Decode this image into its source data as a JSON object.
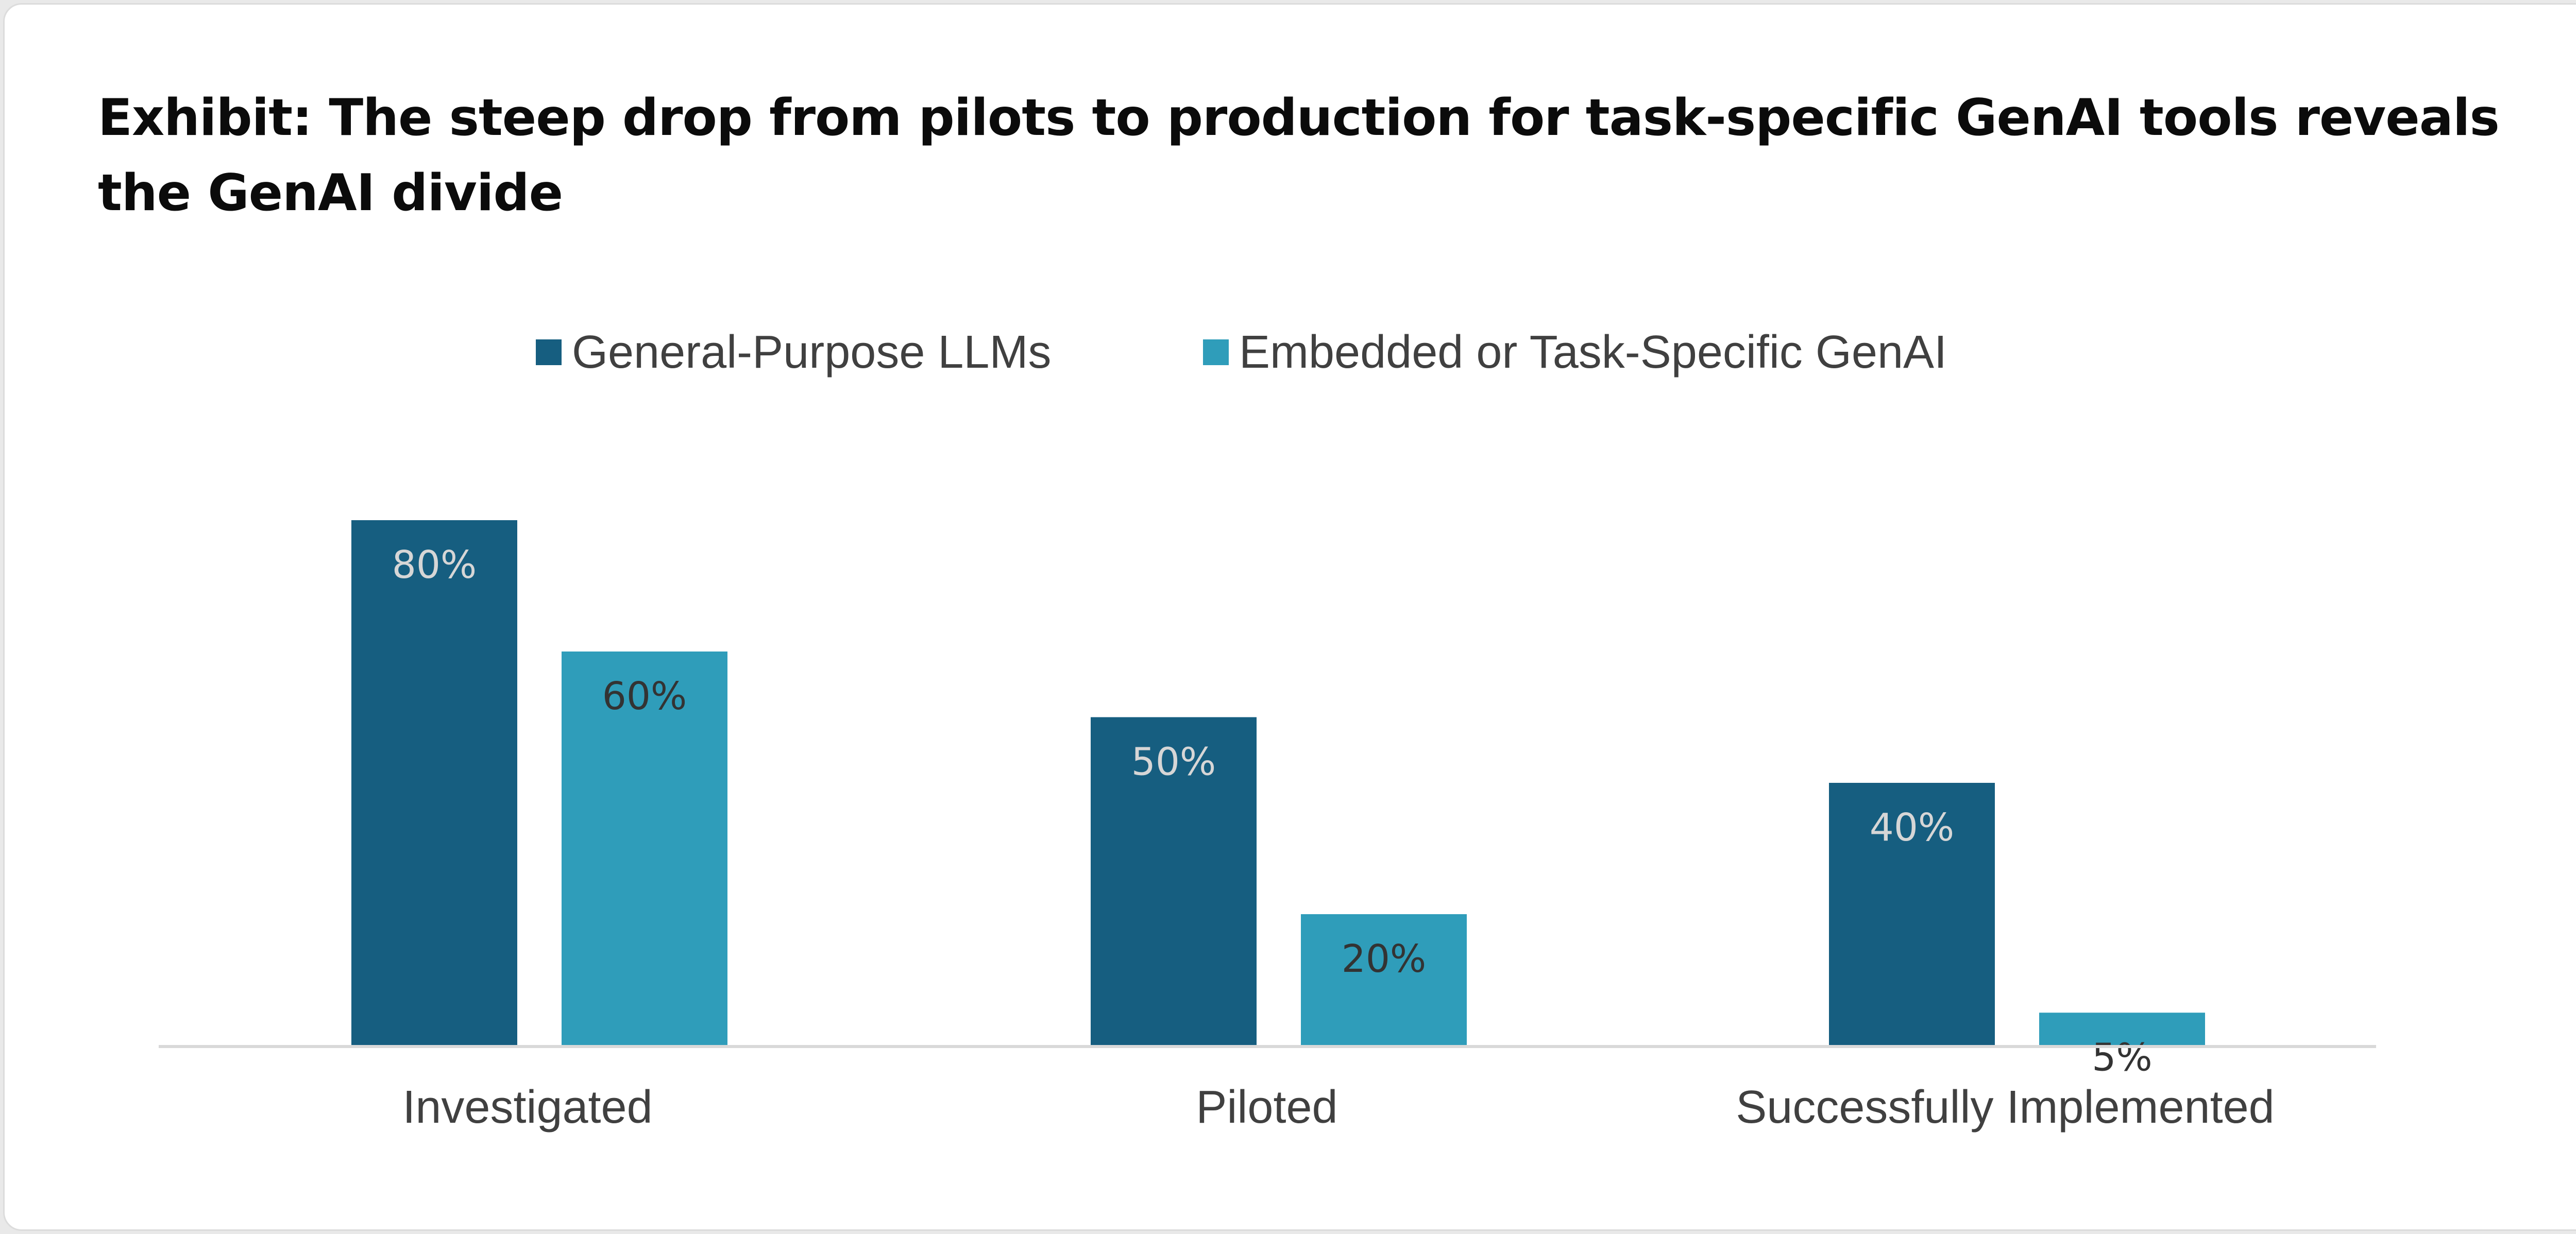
{
  "chart_data": {
    "type": "bar",
    "title": "Exhibit: The steep drop from pilots to production for task-specific GenAI tools reveals the GenAI divide",
    "categories": [
      "Investigated",
      "Piloted",
      "Successfully Implemented"
    ],
    "series": [
      {
        "name": "General-Purpose LLMs",
        "color": "#165e80",
        "label_color": "#d6d6d6",
        "values": [
          80,
          50,
          40
        ],
        "labels": [
          "80%",
          "50%",
          "40%"
        ]
      },
      {
        "name": "Embedded or Task-Specific GenAI",
        "color": "#2f9dba",
        "label_color": "#333333",
        "values": [
          60,
          20,
          5
        ],
        "labels": [
          "60%",
          "20%",
          "5%"
        ]
      }
    ],
    "xlabel": "",
    "ylabel": "",
    "ylim": [
      0,
      100
    ],
    "legend_position": "top",
    "grid": false,
    "baseline_color": "#d9d9d9"
  }
}
